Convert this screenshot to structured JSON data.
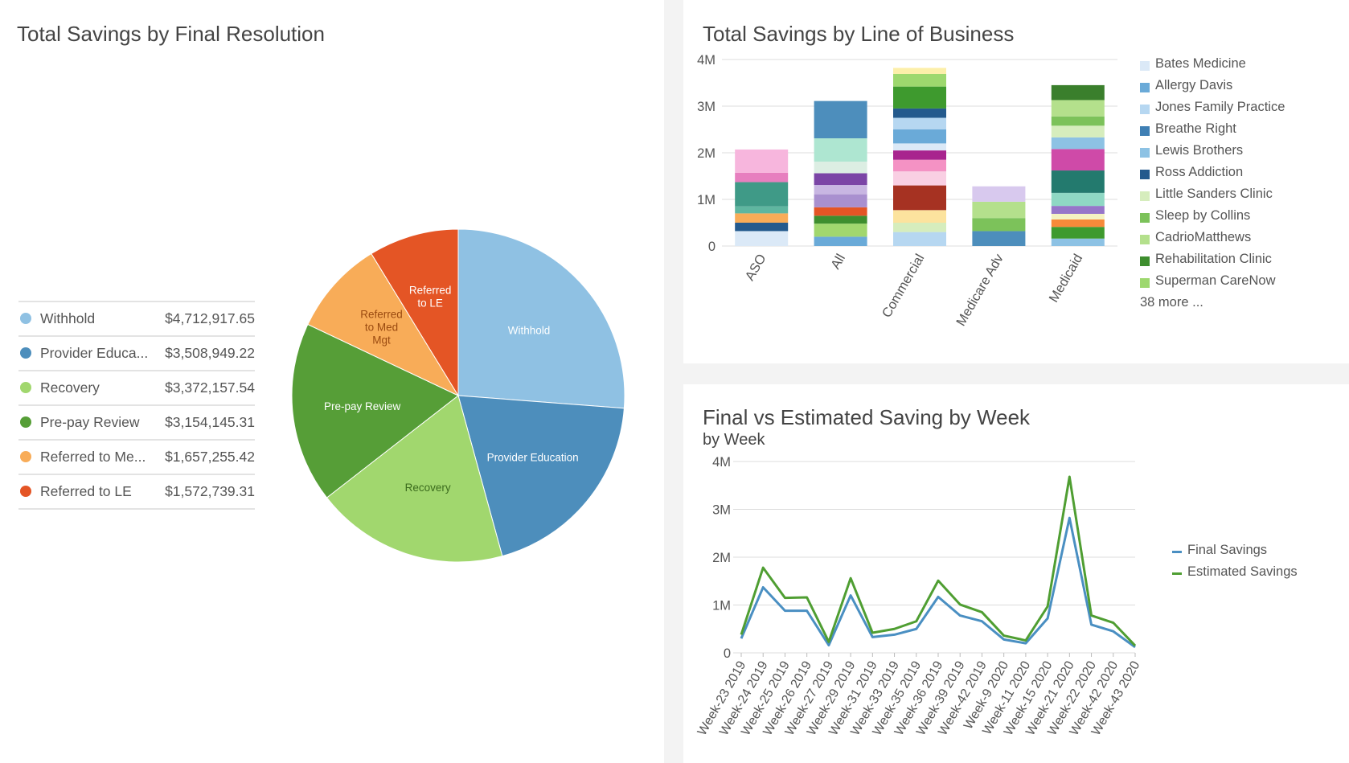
{
  "pie": {
    "title": "Total Savings by Final Resolution",
    "legend": [
      {
        "name": "Withhold",
        "value": "$4,712,917.65"
      },
      {
        "name": "Provider Educa...",
        "value": "$3,508,949.22"
      },
      {
        "name": "Recovery",
        "value": "$3,372,157.54"
      },
      {
        "name": "Pre-pay Review",
        "value": "$3,154,145.31"
      },
      {
        "name": "Referred to Me...",
        "value": "$1,657,255.42"
      },
      {
        "name": "Referred to LE",
        "value": "$1,572,739.31"
      }
    ]
  },
  "bar": {
    "title": "Total Savings by Line of Business",
    "legend": [
      {
        "name": "Bates Medicine",
        "color": "#dbe9f7"
      },
      {
        "name": "Allergy Davis",
        "color": "#6aaad8"
      },
      {
        "name": "Jones Family Practice",
        "color": "#b6d7f1"
      },
      {
        "name": "Breathe Right",
        "color": "#3f7fb4"
      },
      {
        "name": "Lewis Brothers",
        "color": "#8dc2e4"
      },
      {
        "name": "Ross Addiction",
        "color": "#245a8d"
      },
      {
        "name": "Little Sanders Clinic",
        "color": "#d6edbd"
      },
      {
        "name": "Sleep by Collins",
        "color": "#7cc25a"
      },
      {
        "name": "CadrioMatthews",
        "color": "#b4e08c"
      },
      {
        "name": "Rehabilitation Clinic",
        "color": "#3e8e2e"
      },
      {
        "name": "Superman CareNow",
        "color": "#9dd86e"
      }
    ],
    "more": "38 more ..."
  },
  "line": {
    "title": "Final vs Estimated Saving by Week",
    "subtitle": "by Week"
  },
  "chart_data": [
    {
      "type": "pie",
      "title": "Total Savings by Final Resolution",
      "slices": [
        {
          "name": "Withhold",
          "label": "Withhold",
          "value": 4712917.65,
          "color": "#8fc1e3",
          "text_color": "#ffffff"
        },
        {
          "name": "Provider Education",
          "label": "Provider Education",
          "value": 3508949.22,
          "color": "#4d8ebc",
          "text_color": "#ffffff"
        },
        {
          "name": "Recovery",
          "label": "Recovery",
          "value": 3372157.54,
          "color": "#a1d76e",
          "text_color": "#3b6b1d"
        },
        {
          "name": "Pre-pay Review",
          "label": "Pre-pay Review",
          "value": 3154145.31,
          "color": "#569e37",
          "text_color": "#ffffff"
        },
        {
          "name": "Referred to Med Mgt",
          "label": "Referred\nto Med\nMgt",
          "value": 1657255.42,
          "color": "#f8ac58",
          "text_color": "#9a4a10"
        },
        {
          "name": "Referred to LE",
          "label": "Referred\nto LE",
          "value": 1572739.31,
          "color": "#e45525",
          "text_color": "#ffffff"
        }
      ]
    },
    {
      "type": "bar",
      "stacked": true,
      "title": "Total Savings by Line of Business",
      "categories": [
        "ASO",
        "All",
        "Commercial",
        "Medicare Adv",
        "Medicaid"
      ],
      "y_ticks": [
        "0",
        "1M",
        "2M",
        "3M",
        "4M"
      ],
      "ylim": [
        0,
        4000000
      ],
      "stacks": [
        [
          {
            "value": 320000,
            "color": "#dbe9f7"
          },
          {
            "value": 180000,
            "color": "#245a8d"
          },
          {
            "value": 200000,
            "color": "#f8ac58"
          },
          {
            "value": 150000,
            "color": "#5fb6a0"
          },
          {
            "value": 520000,
            "color": "#3f9a87"
          },
          {
            "value": 200000,
            "color": "#e77fbf"
          },
          {
            "value": 500000,
            "color": "#f7b6dd"
          }
        ],
        [
          {
            "value": 200000,
            "color": "#6aaad8"
          },
          {
            "value": 280000,
            "color": "#a1d76e"
          },
          {
            "value": 170000,
            "color": "#3e8e2e"
          },
          {
            "value": 180000,
            "color": "#e45525"
          },
          {
            "value": 280000,
            "color": "#a990cf"
          },
          {
            "value": 200000,
            "color": "#c8b6e2"
          },
          {
            "value": 250000,
            "color": "#7b45a6"
          },
          {
            "value": 250000,
            "color": "#dceee3"
          },
          {
            "value": 500000,
            "color": "#aee6d1"
          },
          {
            "value": 800000,
            "color": "#4d8ebc"
          }
        ],
        [
          {
            "value": 300000,
            "color": "#b6d7f1"
          },
          {
            "value": 200000,
            "color": "#d6edbd"
          },
          {
            "value": 270000,
            "color": "#fce39e"
          },
          {
            "value": 530000,
            "color": "#a63222"
          },
          {
            "value": 300000,
            "color": "#f9cfe3"
          },
          {
            "value": 250000,
            "color": "#f492c4"
          },
          {
            "value": 200000,
            "color": "#a8248e"
          },
          {
            "value": 150000,
            "color": "#dbe9f7"
          },
          {
            "value": 300000,
            "color": "#6aaad8"
          },
          {
            "value": 250000,
            "color": "#b6d7f1"
          },
          {
            "value": 200000,
            "color": "#245a8d"
          },
          {
            "value": 470000,
            "color": "#3e9a2e"
          },
          {
            "value": 270000,
            "color": "#9dd86e"
          },
          {
            "value": 130000,
            "color": "#fcefa9"
          }
        ],
        [
          {
            "value": 320000,
            "color": "#4d8ebc"
          },
          {
            "value": 280000,
            "color": "#7cc25a"
          },
          {
            "value": 350000,
            "color": "#b4e08c"
          },
          {
            "value": 330000,
            "color": "#d8c9ee"
          }
        ],
        [
          {
            "value": 160000,
            "color": "#8dc2e4"
          },
          {
            "value": 250000,
            "color": "#3e9a2e"
          },
          {
            "value": 160000,
            "color": "#f78a3a"
          },
          {
            "value": 120000,
            "color": "#f4f2c2"
          },
          {
            "value": 170000,
            "color": "#9676c9"
          },
          {
            "value": 280000,
            "color": "#8fd8c4"
          },
          {
            "value": 480000,
            "color": "#237a6e"
          },
          {
            "value": 460000,
            "color": "#cf4aa8"
          },
          {
            "value": 250000,
            "color": "#8dc2e4"
          },
          {
            "value": 250000,
            "color": "#d6edbd"
          },
          {
            "value": 200000,
            "color": "#7cc25a"
          },
          {
            "value": 350000,
            "color": "#b4e08c"
          },
          {
            "value": 320000,
            "color": "#3a7f2c"
          }
        ]
      ]
    },
    {
      "type": "line",
      "title": "Final vs Estimated Saving by Week",
      "subtitle": "by Week",
      "x_labels": [
        "Week-23 2019",
        "Week-24 2019",
        "Week-25 2019",
        "Week-26 2019",
        "Week-27 2019",
        "Week-29 2019",
        "Week-31 2019",
        "Week-33 2019",
        "Week-35 2019",
        "Week-36 2019",
        "Week-39 2019",
        "Week-42 2019",
        "Week-9 2020",
        "Week-11 2020",
        "Week-15 2020",
        "Week-21 2020",
        "Week-22 2020",
        "Week-42 2020",
        "Week-43 2020"
      ],
      "y_ticks": [
        "0",
        "1M",
        "2M",
        "3M",
        "4M"
      ],
      "ylim": [
        0,
        4000000
      ],
      "series": [
        {
          "name": "Final Savings",
          "color": "#4a8fc2",
          "values": [
            300000,
            1370000,
            880000,
            880000,
            160000,
            1200000,
            330000,
            380000,
            500000,
            1170000,
            780000,
            660000,
            280000,
            200000,
            720000,
            2820000,
            590000,
            450000,
            120000
          ]
        },
        {
          "name": "Estimated Savings",
          "color": "#4f9e32",
          "values": [
            380000,
            1780000,
            1150000,
            1160000,
            230000,
            1560000,
            420000,
            500000,
            660000,
            1510000,
            1010000,
            850000,
            360000,
            260000,
            970000,
            3680000,
            780000,
            630000,
            150000
          ]
        }
      ]
    }
  ]
}
